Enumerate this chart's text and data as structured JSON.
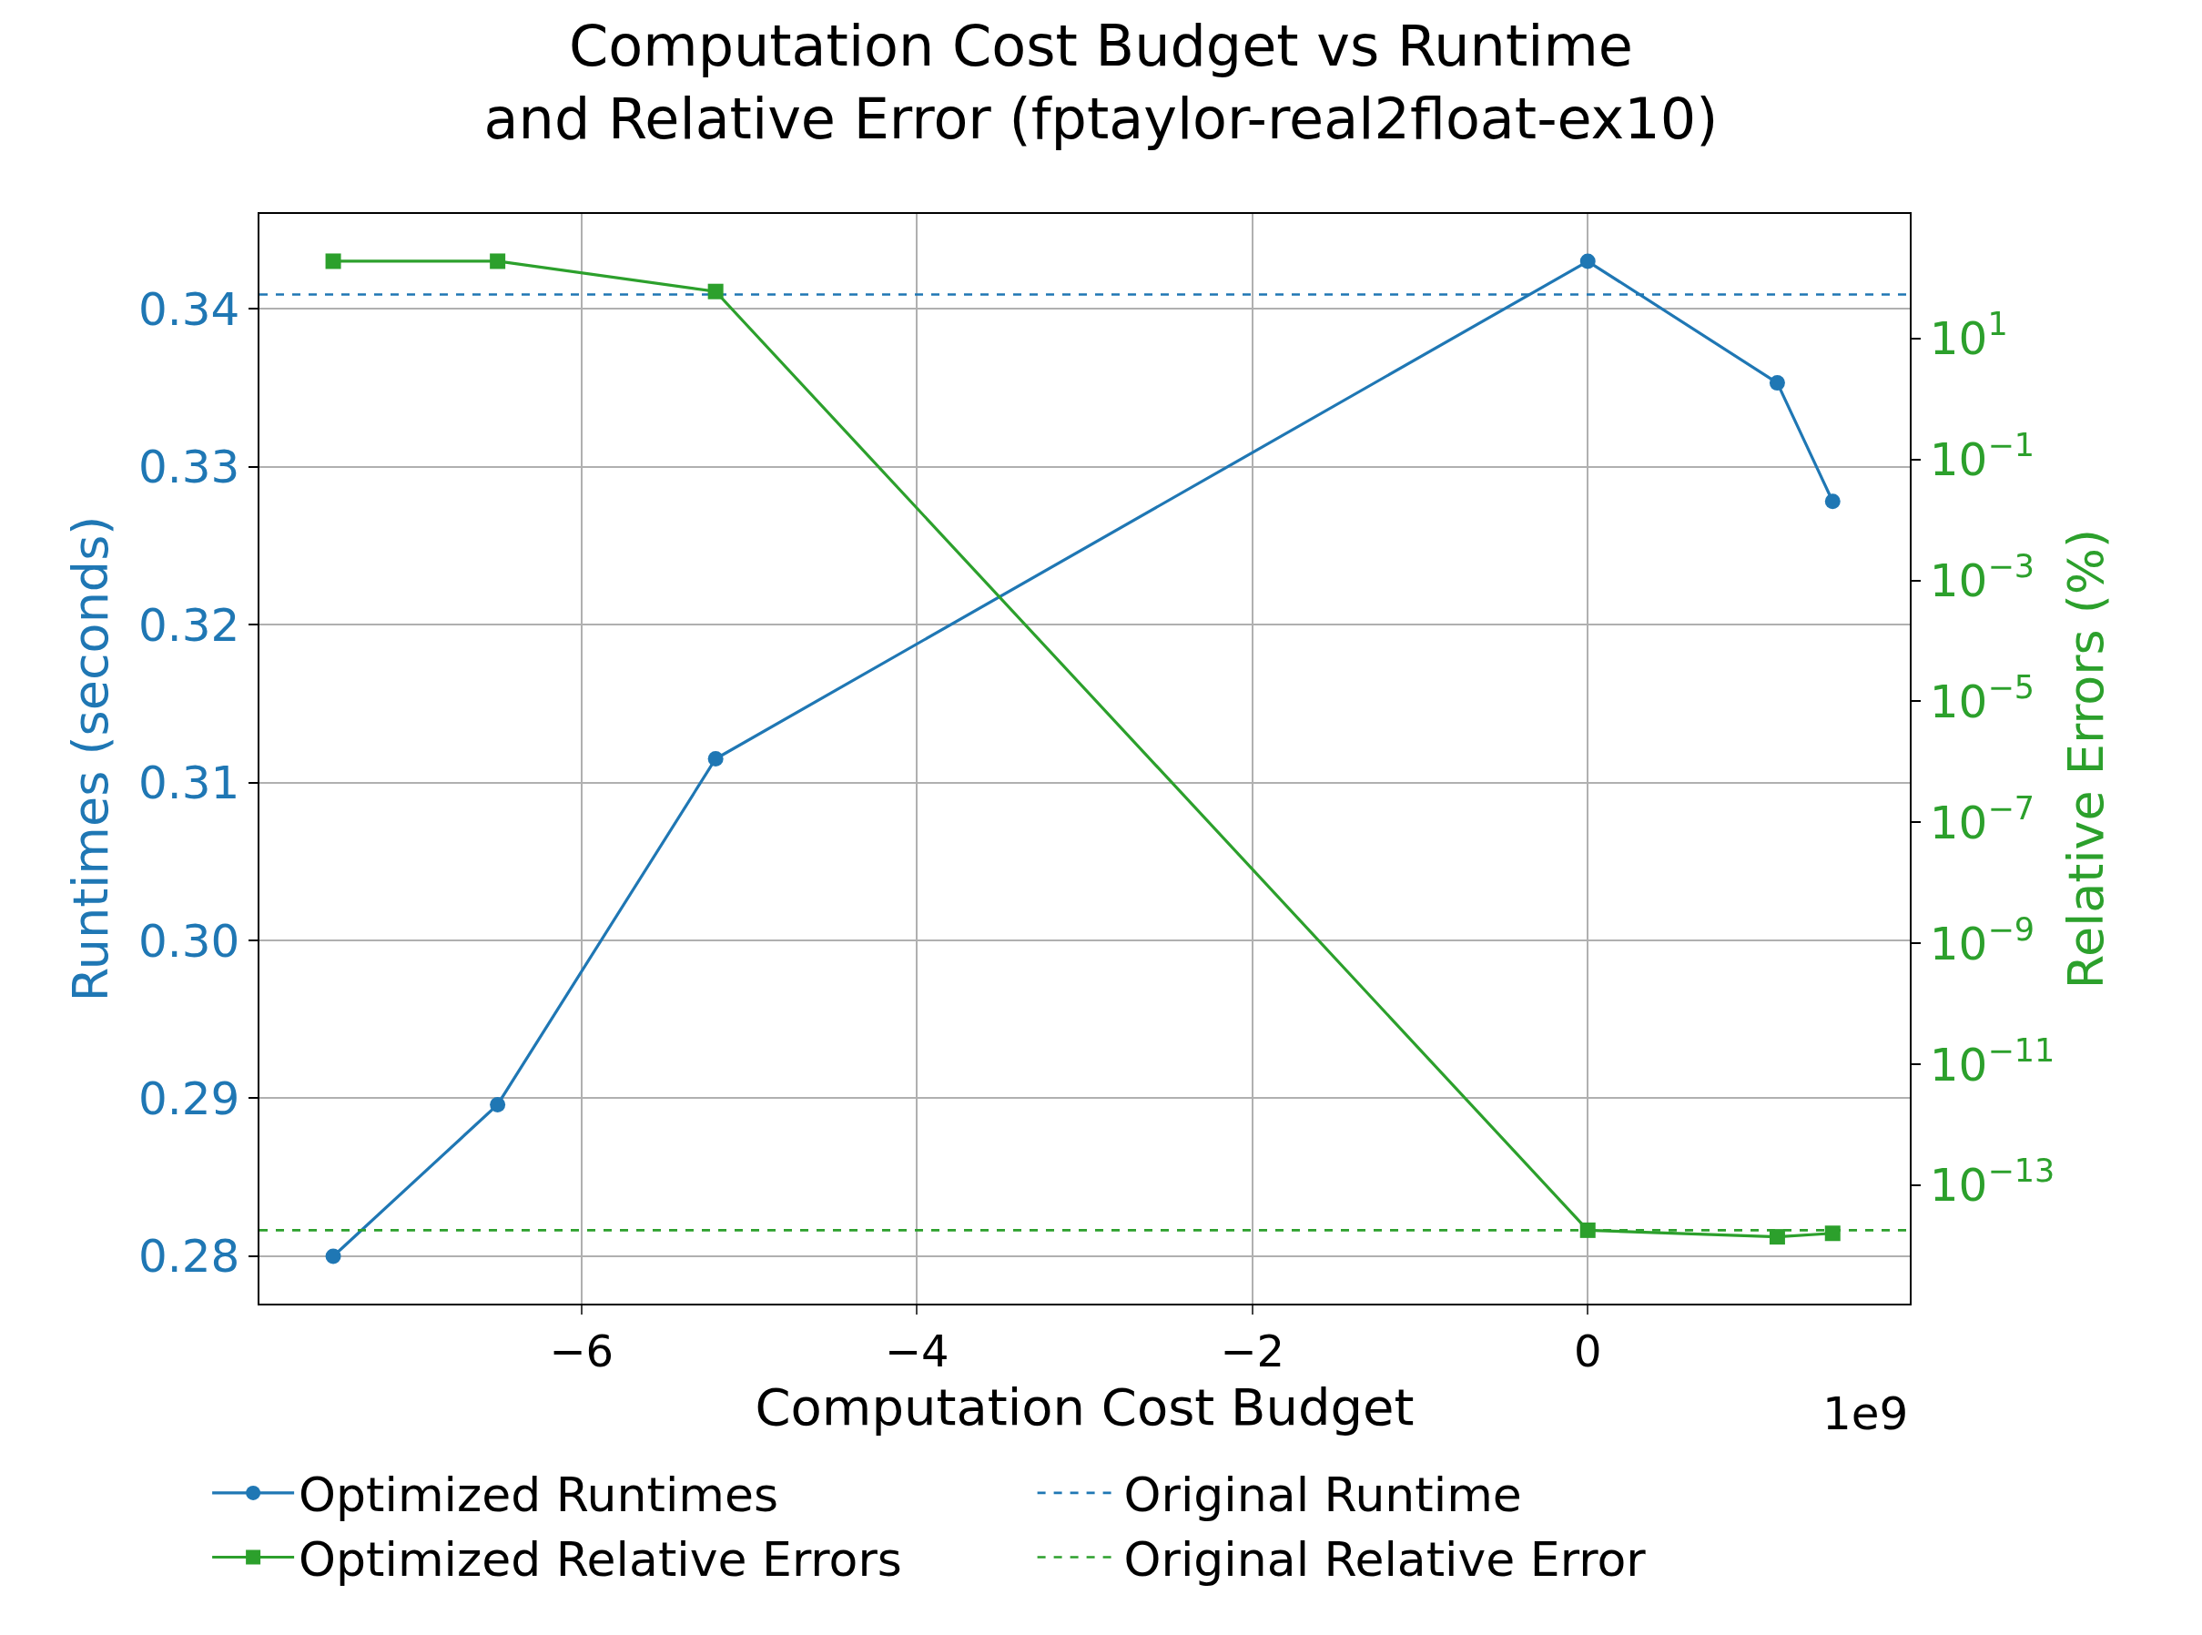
{
  "chart_data": {
    "type": "line",
    "title": "Computation Cost Budget vs Runtime\nand Relative Error (fptaylor-real2float-ex10)",
    "xlabel": "Computation Cost Budget",
    "ylabel": "Runtimes (seconds)",
    "y2label": "Relative Errors (%)",
    "x": [
      -7.48,
      -6.5,
      -5.2,
      0,
      1.13,
      1.46
    ],
    "series": [
      {
        "name": "Optimized Runtimes",
        "color": "#1f77b4",
        "marker": "circle",
        "values": [
          0.28,
          0.2896,
          0.3115,
          0.343,
          0.3353,
          0.3278
        ]
      },
      {
        "name": "Optimized Relative Errors",
        "color": "#2ca02c",
        "marker": "square",
        "axis": "y2",
        "values": [
          190,
          190,
          60,
          1.8e-14,
          1.4e-14,
          1.6e-14
        ]
      }
    ],
    "ref_lines": [
      {
        "axis": "y",
        "value": 0.3409,
        "label": "Original Runtime",
        "color": "#1f77b4",
        "line_style": "dashed"
      },
      {
        "axis": "y2",
        "value": 1.8e-14,
        "label": "Original Relative Error",
        "color": "#2ca02c",
        "line_style": "dashed"
      }
    ],
    "xlim": [
      -7.92,
      1.92
    ],
    "xticks": [
      -6,
      -4,
      -2,
      0
    ],
    "ylim": [
      0.277,
      0.346
    ],
    "yticks": [
      {
        "value": 0.28,
        "label": "0.28"
      },
      {
        "value": 0.29,
        "label": "0.29"
      },
      {
        "value": 0.3,
        "label": "0.30"
      },
      {
        "value": 0.31,
        "label": "0.31"
      },
      {
        "value": 0.32,
        "label": "0.32"
      },
      {
        "value": 0.33,
        "label": "0.33"
      },
      {
        "value": 0.34,
        "label": "0.34"
      }
    ],
    "y2lim": [
      1.1e-15,
      1150
    ],
    "y2ticks": [
      {
        "value": 1e-13,
        "label": "10$^{−13}$"
      },
      {
        "value": 1e-11,
        "label": "10$^{−11}$"
      },
      {
        "value": 1e-09,
        "label": "10$^{−9}$"
      },
      {
        "value": 1e-07,
        "label": "10$^{−7}$"
      },
      {
        "value": 1e-05,
        "label": "10$^{−5}$"
      },
      {
        "value": 0.001,
        "label": "10$^{−3}$"
      },
      {
        "value": 0.1,
        "label": "10$^{−1}$"
      },
      {
        "value": 10,
        "label": "10$^{1}$"
      }
    ],
    "log": "y2",
    "grid": true,
    "legend": "bottom",
    "line_style": "solid",
    "annotations": [
      "1e9"
    ]
  }
}
